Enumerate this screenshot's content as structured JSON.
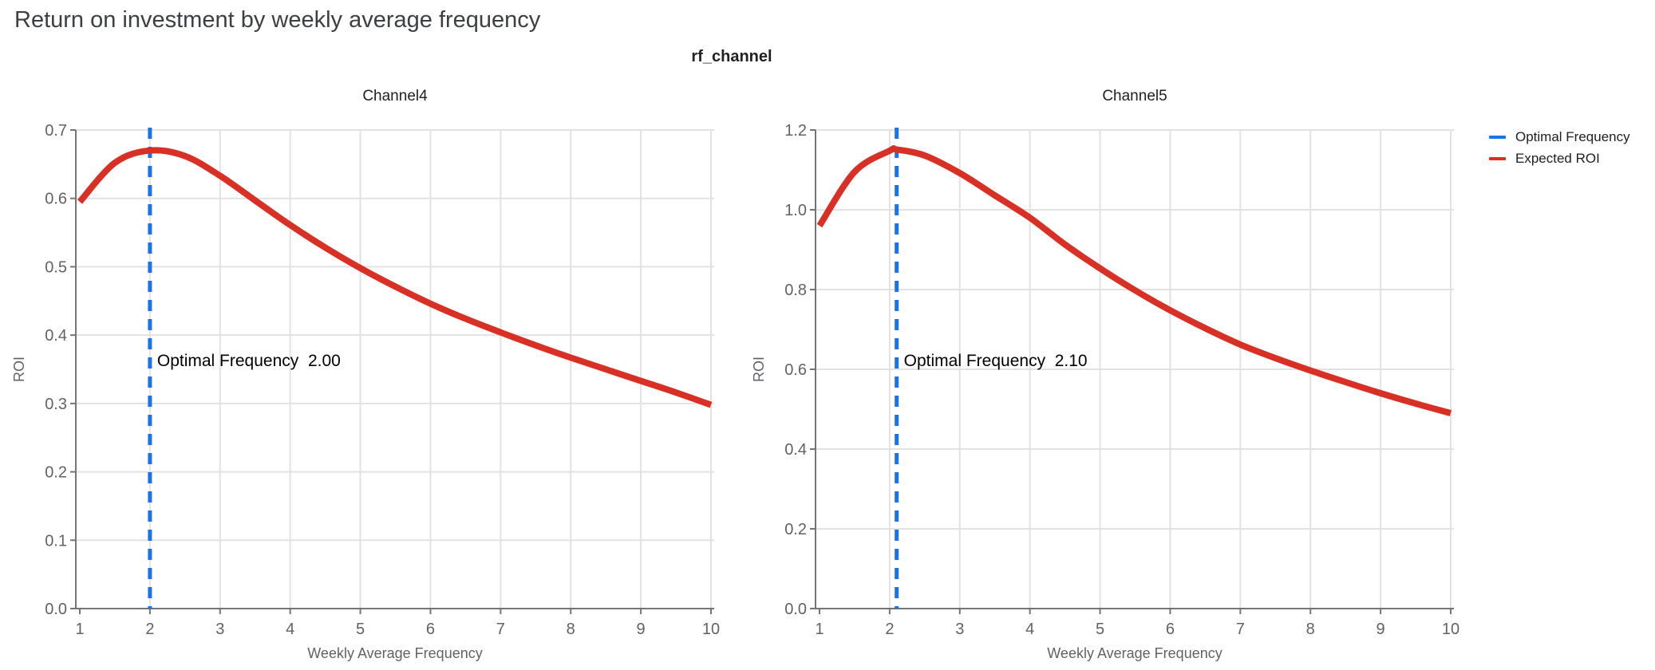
{
  "page": {
    "title": "Return on investment by weekly average frequency",
    "facet_title": "rf_channel"
  },
  "colors": {
    "expected_roi": "#d93025",
    "optimal_frequency": "#1a73e8",
    "grid": "#e2e2e2",
    "axis_line": "#757575",
    "tick_text": "#5f6368",
    "title_text": "#3c4043",
    "black_text": "#202124"
  },
  "legend": {
    "items": [
      {
        "label": "Optimal Frequency",
        "color": "#1a73e8",
        "style": "dash"
      },
      {
        "label": "Expected ROI",
        "color": "#d93025",
        "style": "solid"
      }
    ]
  },
  "chart_data": [
    {
      "type": "line",
      "title": "Channel4",
      "xlabel": "Weekly Average Frequency",
      "ylabel": "ROI",
      "xlim": [
        1,
        10
      ],
      "ylim": [
        0,
        0.7
      ],
      "xticks": [
        1,
        2,
        3,
        4,
        5,
        6,
        7,
        8,
        9,
        10
      ],
      "xtick_labels": [
        "1",
        "2",
        "3",
        "4",
        "5",
        "6",
        "7",
        "8",
        "9",
        "10"
      ],
      "yticks": [
        0,
        0.1,
        0.2,
        0.3,
        0.4,
        0.5,
        0.6,
        0.7
      ],
      "ytick_labels": [
        "0.0",
        "0.1",
        "0.2",
        "0.3",
        "0.4",
        "0.5",
        "0.6",
        "0.7"
      ],
      "grid": true,
      "optimal_frequency": 2.0,
      "annotation_text": "Optimal Frequency  2.00",
      "series": [
        {
          "name": "Expected ROI",
          "x": [
            1.0,
            1.5,
            2.0,
            2.5,
            3.0,
            3.5,
            4.0,
            4.5,
            5.0,
            5.5,
            6.0,
            6.5,
            7.0,
            7.5,
            8.0,
            8.5,
            9.0,
            9.5,
            10.0
          ],
          "y": [
            0.595,
            0.652,
            0.67,
            0.662,
            0.633,
            0.597,
            0.561,
            0.528,
            0.498,
            0.471,
            0.446,
            0.424,
            0.404,
            0.385,
            0.367,
            0.35,
            0.333,
            0.316,
            0.298
          ]
        }
      ]
    },
    {
      "type": "line",
      "title": "Channel5",
      "xlabel": "Weekly Average Frequency",
      "ylabel": "ROI",
      "xlim": [
        1,
        10
      ],
      "ylim": [
        0,
        1.2
      ],
      "xticks": [
        1,
        2,
        3,
        4,
        5,
        6,
        7,
        8,
        9,
        10
      ],
      "xtick_labels": [
        "1",
        "2",
        "3",
        "4",
        "5",
        "6",
        "7",
        "8",
        "9",
        "10"
      ],
      "yticks": [
        0,
        0.2,
        0.4,
        0.6,
        0.8,
        1.0,
        1.2
      ],
      "ytick_labels": [
        "0.0",
        "0.2",
        "0.4",
        "0.6",
        "0.8",
        "1.0",
        "1.2"
      ],
      "grid": true,
      "optimal_frequency": 2.1,
      "annotation_text": "Optimal Frequency  2.10",
      "series": [
        {
          "name": "Expected ROI",
          "x": [
            1.0,
            1.5,
            2.0,
            2.1,
            2.5,
            3.0,
            3.5,
            4.0,
            4.5,
            5.0,
            5.5,
            6.0,
            6.5,
            7.0,
            7.5,
            8.0,
            8.5,
            9.0,
            9.5,
            10.0
          ],
          "y": [
            0.96,
            1.095,
            1.148,
            1.151,
            1.136,
            1.092,
            1.036,
            0.98,
            0.913,
            0.853,
            0.798,
            0.748,
            0.703,
            0.662,
            0.628,
            0.597,
            0.568,
            0.54,
            0.514,
            0.49
          ]
        }
      ]
    }
  ]
}
